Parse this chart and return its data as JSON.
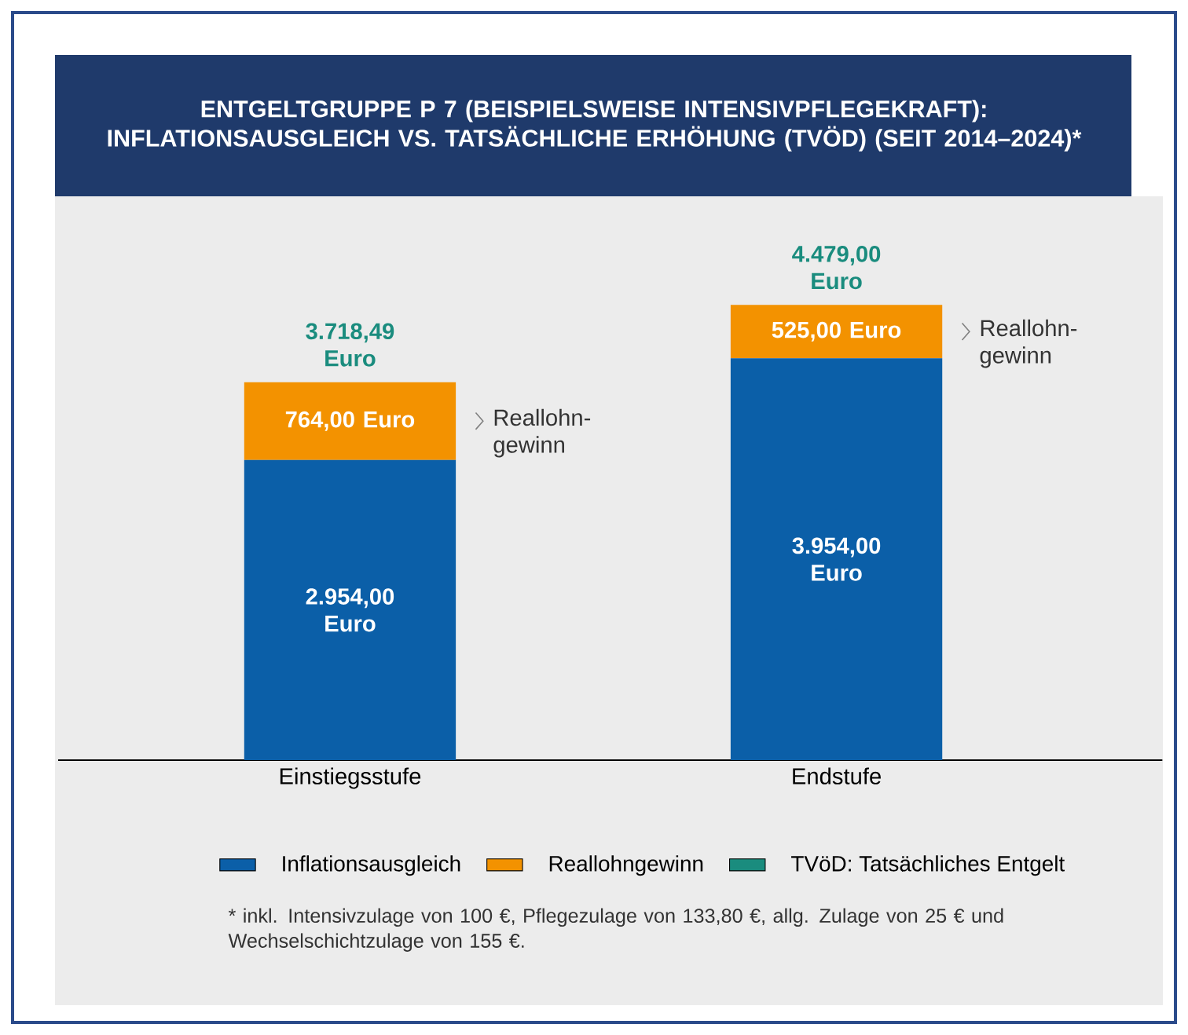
{
  "chart_data": {
    "type": "bar",
    "stacked": true,
    "title": "ENTGELTGRUPPE P 7 (BEISPIELSWEISE INTENSIVPFLEGEKRAFT): INFLATIONSAUSGLEICH VS. TATSÄCHLICHE ERHÖHUNG (TVÖD) (SEIT 2014–2024)*",
    "categories": [
      "Einstiegsstufe",
      "Endstufe"
    ],
    "series": [
      {
        "name": "Inflationsausgleich",
        "color": "#0b5fa8",
        "values": [
          2954.0,
          3954.0
        ],
        "value_labels": [
          "2.954,00 Euro",
          "3.954,00 Euro"
        ]
      },
      {
        "name": "Reallohngewinn",
        "color": "#f39200",
        "values": [
          764.0,
          525.0
        ],
        "value_labels": [
          "764,00 Euro",
          "525,00 Euro"
        ]
      },
      {
        "name": "TVöD: Tatsächliches Entgelt",
        "color": "#1a8c7e",
        "values": [
          null,
          null
        ]
      }
    ],
    "legend": "bottom",
    "annotations": [
      {
        "text": "3.718,49 Euro",
        "x": "Einstiegsstufe",
        "y": 3718.49
      },
      {
        "text": "4.479,00 Euro",
        "x": "Endstufe",
        "y": 4479.0
      },
      "Reallohn-gewinn",
      "Reallohn-gewinn",
      "* inkl. Intensivzulage von 100 €, Pflegezulage von 133,80 €, allg. Zulage von 25 € und Wechselschichtzulage von 155 €."
    ]
  }
}
